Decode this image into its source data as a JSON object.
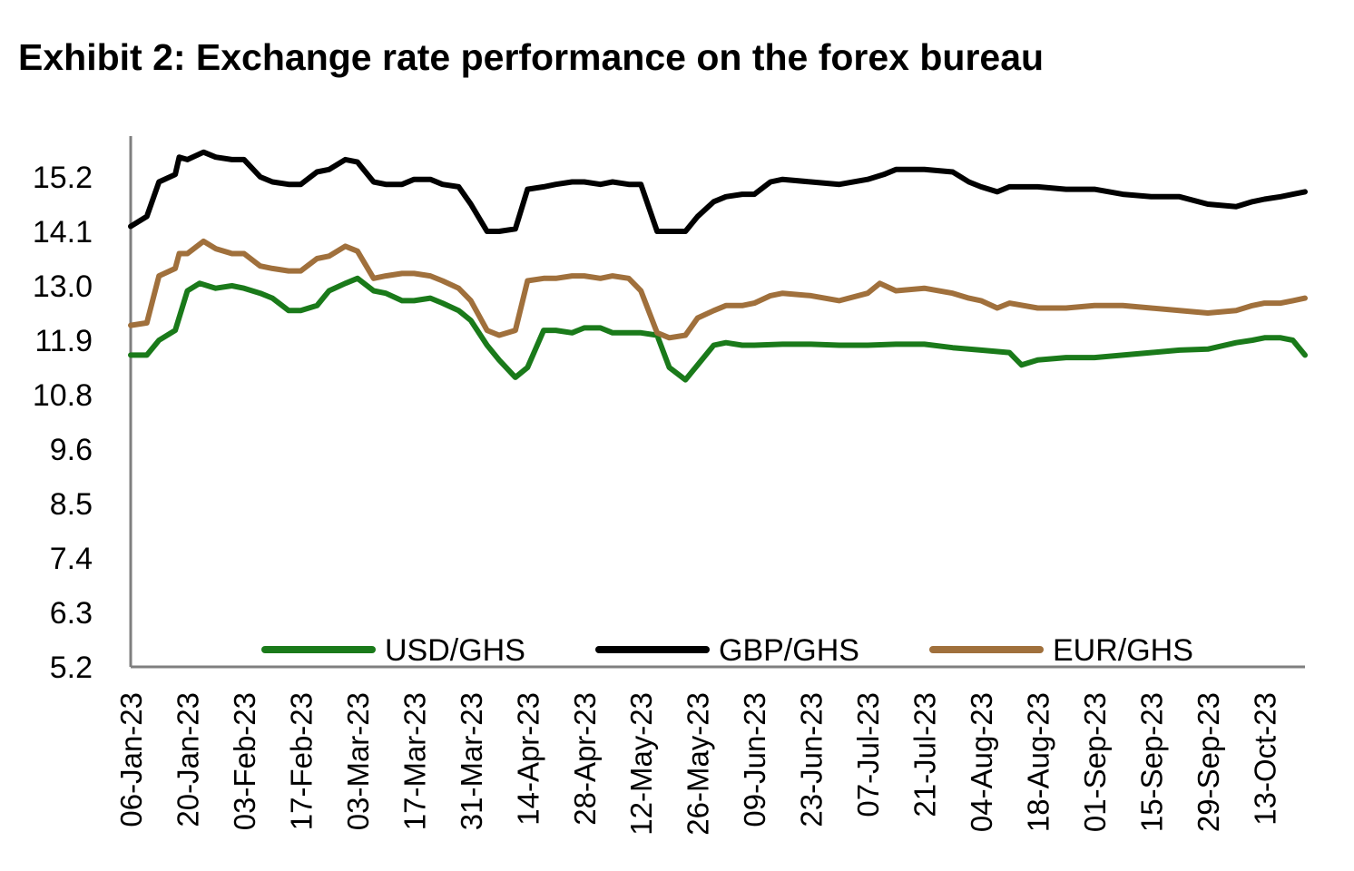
{
  "chart_data": {
    "type": "line",
    "title": "Exhibit 2: Exchange rate performance on the forex bureau",
    "xlabel": "",
    "ylabel": "",
    "ylim": [
      5.2,
      16.0
    ],
    "yticks": [
      "5.2",
      "6.3",
      "7.4",
      "8.5",
      "9.6",
      "10.8",
      "11.9",
      "13.0",
      "14.1",
      "15.2"
    ],
    "xtick_labels": [
      "06-Jan-23",
      "20-Jan-23",
      "03-Feb-23",
      "17-Feb-23",
      "03-Mar-23",
      "17-Mar-23",
      "31-Mar-23",
      "14-Apr-23",
      "28-Apr-23",
      "12-May-23",
      "26-May-23",
      "09-Jun-23",
      "23-Jun-23",
      "07-Jul-23",
      "21-Jul-23",
      "04-Aug-23",
      "18-Aug-23",
      "01-Sep-23",
      "15-Sep-23",
      "29-Sep-23",
      "13-Oct-23"
    ],
    "grid": false,
    "legend_position": "bottom-inside",
    "series": [
      {
        "name": "USD/GHS",
        "color": "#1a7a1a",
        "points": [
          [
            "06-Jan-23",
            11.5
          ],
          [
            "10-Jan-23",
            11.5
          ],
          [
            "13-Jan-23",
            11.8
          ],
          [
            "17-Jan-23",
            12.0
          ],
          [
            "20-Jan-23",
            12.8
          ],
          [
            "23-Jan-23",
            12.95
          ],
          [
            "27-Jan-23",
            12.85
          ],
          [
            "31-Jan-23",
            12.9
          ],
          [
            "03-Feb-23",
            12.85
          ],
          [
            "07-Feb-23",
            12.75
          ],
          [
            "10-Feb-23",
            12.65
          ],
          [
            "14-Feb-23",
            12.4
          ],
          [
            "17-Feb-23",
            12.4
          ],
          [
            "21-Feb-23",
            12.5
          ],
          [
            "24-Feb-23",
            12.8
          ],
          [
            "28-Feb-23",
            12.95
          ],
          [
            "03-Mar-23",
            13.05
          ],
          [
            "07-Mar-23",
            12.8
          ],
          [
            "10-Mar-23",
            12.75
          ],
          [
            "14-Mar-23",
            12.6
          ],
          [
            "17-Mar-23",
            12.6
          ],
          [
            "21-Mar-23",
            12.65
          ],
          [
            "24-Mar-23",
            12.55
          ],
          [
            "28-Mar-23",
            12.4
          ],
          [
            "31-Mar-23",
            12.2
          ],
          [
            "04-Apr-23",
            11.7
          ],
          [
            "07-Apr-23",
            11.4
          ],
          [
            "11-Apr-23",
            11.05
          ],
          [
            "14-Apr-23",
            11.25
          ],
          [
            "18-Apr-23",
            12.0
          ],
          [
            "21-Apr-23",
            12.0
          ],
          [
            "25-Apr-23",
            11.95
          ],
          [
            "28-Apr-23",
            12.05
          ],
          [
            "02-May-23",
            12.05
          ],
          [
            "05-May-23",
            11.95
          ],
          [
            "09-May-23",
            11.95
          ],
          [
            "12-May-23",
            11.95
          ],
          [
            "16-May-23",
            11.9
          ],
          [
            "19-May-23",
            11.25
          ],
          [
            "23-May-23",
            11.0
          ],
          [
            "26-May-23",
            11.3
          ],
          [
            "30-May-23",
            11.7
          ],
          [
            "02-Jun-23",
            11.75
          ],
          [
            "06-Jun-23",
            11.7
          ],
          [
            "09-Jun-23",
            11.7
          ],
          [
            "16-Jun-23",
            11.72
          ],
          [
            "23-Jun-23",
            11.72
          ],
          [
            "30-Jun-23",
            11.7
          ],
          [
            "07-Jul-23",
            11.7
          ],
          [
            "14-Jul-23",
            11.72
          ],
          [
            "21-Jul-23",
            11.72
          ],
          [
            "28-Jul-23",
            11.65
          ],
          [
            "04-Aug-23",
            11.6
          ],
          [
            "11-Aug-23",
            11.55
          ],
          [
            "14-Aug-23",
            11.3
          ],
          [
            "18-Aug-23",
            11.4
          ],
          [
            "25-Aug-23",
            11.45
          ],
          [
            "01-Sep-23",
            11.45
          ],
          [
            "08-Sep-23",
            11.5
          ],
          [
            "15-Sep-23",
            11.55
          ],
          [
            "22-Sep-23",
            11.6
          ],
          [
            "29-Sep-23",
            11.62
          ],
          [
            "06-Oct-23",
            11.75
          ],
          [
            "10-Oct-23",
            11.8
          ],
          [
            "13-Oct-23",
            11.85
          ],
          [
            "17-Oct-23",
            11.85
          ],
          [
            "20-Oct-23",
            11.8
          ],
          [
            "23-Oct-23",
            11.5
          ]
        ]
      },
      {
        "name": "GBP/GHS",
        "color": "#000000",
        "points": [
          [
            "06-Jan-23",
            14.1
          ],
          [
            "10-Jan-23",
            14.3
          ],
          [
            "13-Jan-23",
            15.0
          ],
          [
            "17-Jan-23",
            15.15
          ],
          [
            "18-Jan-23",
            15.5
          ],
          [
            "20-Jan-23",
            15.45
          ],
          [
            "24-Jan-23",
            15.6
          ],
          [
            "27-Jan-23",
            15.5
          ],
          [
            "31-Jan-23",
            15.45
          ],
          [
            "03-Feb-23",
            15.45
          ],
          [
            "07-Feb-23",
            15.1
          ],
          [
            "10-Feb-23",
            15.0
          ],
          [
            "14-Feb-23",
            14.95
          ],
          [
            "17-Feb-23",
            14.95
          ],
          [
            "21-Feb-23",
            15.2
          ],
          [
            "24-Feb-23",
            15.25
          ],
          [
            "28-Feb-23",
            15.45
          ],
          [
            "03-Mar-23",
            15.4
          ],
          [
            "07-Mar-23",
            15.0
          ],
          [
            "10-Mar-23",
            14.95
          ],
          [
            "14-Mar-23",
            14.95
          ],
          [
            "17-Mar-23",
            15.05
          ],
          [
            "21-Mar-23",
            15.05
          ],
          [
            "24-Mar-23",
            14.95
          ],
          [
            "28-Mar-23",
            14.9
          ],
          [
            "31-Mar-23",
            14.55
          ],
          [
            "04-Apr-23",
            14.0
          ],
          [
            "07-Apr-23",
            14.0
          ],
          [
            "11-Apr-23",
            14.05
          ],
          [
            "14-Apr-23",
            14.85
          ],
          [
            "18-Apr-23",
            14.9
          ],
          [
            "21-Apr-23",
            14.95
          ],
          [
            "25-Apr-23",
            15.0
          ],
          [
            "28-Apr-23",
            15.0
          ],
          [
            "02-May-23",
            14.95
          ],
          [
            "05-May-23",
            15.0
          ],
          [
            "09-May-23",
            14.95
          ],
          [
            "12-May-23",
            14.95
          ],
          [
            "16-May-23",
            14.0
          ],
          [
            "19-May-23",
            14.0
          ],
          [
            "23-May-23",
            14.0
          ],
          [
            "26-May-23",
            14.3
          ],
          [
            "30-May-23",
            14.6
          ],
          [
            "02-Jun-23",
            14.7
          ],
          [
            "06-Jun-23",
            14.75
          ],
          [
            "09-Jun-23",
            14.75
          ],
          [
            "13-Jun-23",
            15.0
          ],
          [
            "16-Jun-23",
            15.05
          ],
          [
            "23-Jun-23",
            15.0
          ],
          [
            "30-Jun-23",
            14.95
          ],
          [
            "07-Jul-23",
            15.05
          ],
          [
            "11-Jul-23",
            15.15
          ],
          [
            "14-Jul-23",
            15.25
          ],
          [
            "21-Jul-23",
            15.25
          ],
          [
            "28-Jul-23",
            15.2
          ],
          [
            "01-Aug-23",
            15.0
          ],
          [
            "04-Aug-23",
            14.9
          ],
          [
            "08-Aug-23",
            14.8
          ],
          [
            "11-Aug-23",
            14.9
          ],
          [
            "18-Aug-23",
            14.9
          ],
          [
            "25-Aug-23",
            14.85
          ],
          [
            "01-Sep-23",
            14.85
          ],
          [
            "08-Sep-23",
            14.75
          ],
          [
            "15-Sep-23",
            14.7
          ],
          [
            "22-Sep-23",
            14.7
          ],
          [
            "29-Sep-23",
            14.55
          ],
          [
            "06-Oct-23",
            14.5
          ],
          [
            "10-Oct-23",
            14.6
          ],
          [
            "13-Oct-23",
            14.65
          ],
          [
            "17-Oct-23",
            14.7
          ],
          [
            "20-Oct-23",
            14.75
          ],
          [
            "23-Oct-23",
            14.8
          ]
        ]
      },
      {
        "name": "EUR/GHS",
        "color": "#a0703c",
        "points": [
          [
            "06-Jan-23",
            12.1
          ],
          [
            "10-Jan-23",
            12.15
          ],
          [
            "13-Jan-23",
            13.1
          ],
          [
            "17-Jan-23",
            13.25
          ],
          [
            "18-Jan-23",
            13.55
          ],
          [
            "20-Jan-23",
            13.55
          ],
          [
            "24-Jan-23",
            13.8
          ],
          [
            "27-Jan-23",
            13.65
          ],
          [
            "31-Jan-23",
            13.55
          ],
          [
            "03-Feb-23",
            13.55
          ],
          [
            "07-Feb-23",
            13.3
          ],
          [
            "10-Feb-23",
            13.25
          ],
          [
            "14-Feb-23",
            13.2
          ],
          [
            "17-Feb-23",
            13.2
          ],
          [
            "21-Feb-23",
            13.45
          ],
          [
            "24-Feb-23",
            13.5
          ],
          [
            "28-Feb-23",
            13.7
          ],
          [
            "03-Mar-23",
            13.6
          ],
          [
            "07-Mar-23",
            13.05
          ],
          [
            "10-Mar-23",
            13.1
          ],
          [
            "14-Mar-23",
            13.15
          ],
          [
            "17-Mar-23",
            13.15
          ],
          [
            "21-Mar-23",
            13.1
          ],
          [
            "24-Mar-23",
            13.0
          ],
          [
            "28-Mar-23",
            12.85
          ],
          [
            "31-Mar-23",
            12.6
          ],
          [
            "04-Apr-23",
            12.0
          ],
          [
            "07-Apr-23",
            11.9
          ],
          [
            "11-Apr-23",
            12.0
          ],
          [
            "14-Apr-23",
            13.0
          ],
          [
            "18-Apr-23",
            13.05
          ],
          [
            "21-Apr-23",
            13.05
          ],
          [
            "25-Apr-23",
            13.1
          ],
          [
            "28-Apr-23",
            13.1
          ],
          [
            "02-May-23",
            13.05
          ],
          [
            "05-May-23",
            13.1
          ],
          [
            "09-May-23",
            13.05
          ],
          [
            "12-May-23",
            12.8
          ],
          [
            "16-May-23",
            11.95
          ],
          [
            "19-May-23",
            11.85
          ],
          [
            "23-May-23",
            11.9
          ],
          [
            "26-May-23",
            12.25
          ],
          [
            "30-May-23",
            12.4
          ],
          [
            "02-Jun-23",
            12.5
          ],
          [
            "06-Jun-23",
            12.5
          ],
          [
            "09-Jun-23",
            12.55
          ],
          [
            "13-Jun-23",
            12.7
          ],
          [
            "16-Jun-23",
            12.75
          ],
          [
            "23-Jun-23",
            12.7
          ],
          [
            "30-Jun-23",
            12.6
          ],
          [
            "07-Jul-23",
            12.75
          ],
          [
            "10-Jul-23",
            12.95
          ],
          [
            "14-Jul-23",
            12.8
          ],
          [
            "21-Jul-23",
            12.85
          ],
          [
            "28-Jul-23",
            12.75
          ],
          [
            "01-Aug-23",
            12.65
          ],
          [
            "04-Aug-23",
            12.6
          ],
          [
            "08-Aug-23",
            12.45
          ],
          [
            "11-Aug-23",
            12.55
          ],
          [
            "18-Aug-23",
            12.45
          ],
          [
            "25-Aug-23",
            12.45
          ],
          [
            "01-Sep-23",
            12.5
          ],
          [
            "08-Sep-23",
            12.5
          ],
          [
            "15-Sep-23",
            12.45
          ],
          [
            "22-Sep-23",
            12.4
          ],
          [
            "29-Sep-23",
            12.35
          ],
          [
            "06-Oct-23",
            12.4
          ],
          [
            "10-Oct-23",
            12.5
          ],
          [
            "13-Oct-23",
            12.55
          ],
          [
            "17-Oct-23",
            12.55
          ],
          [
            "20-Oct-23",
            12.6
          ],
          [
            "23-Oct-23",
            12.65
          ]
        ]
      }
    ]
  }
}
